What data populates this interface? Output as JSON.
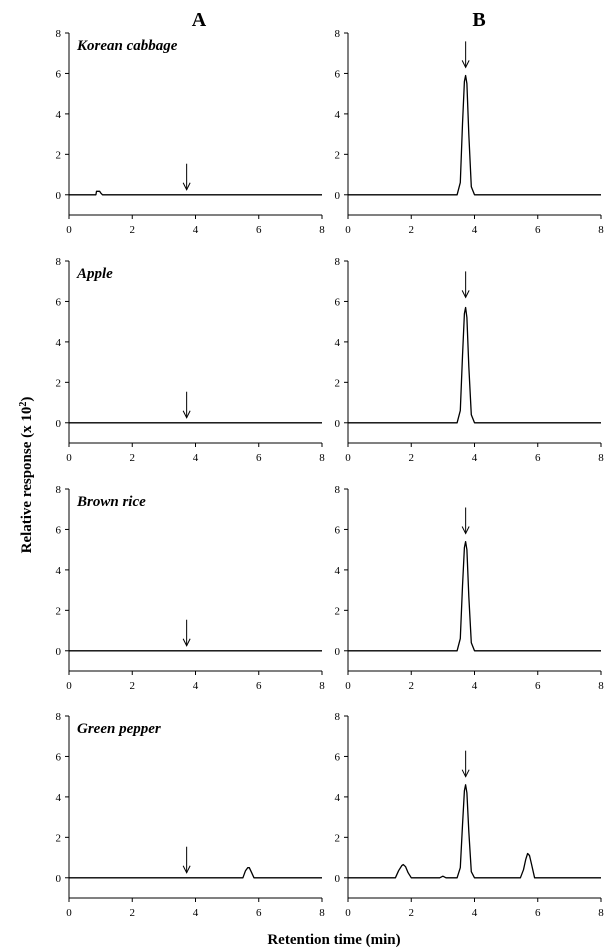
{
  "figure": {
    "column_labels": [
      "A",
      "B"
    ],
    "panel_labels": [
      "Korean cabbage",
      "Apple",
      "Brown rice",
      "Green pepper"
    ],
    "ylabel": "Relative response (x 10",
    "ylabel_sup": "2",
    "ylabel_end": ")",
    "xlabel": "Retention time (min)"
  },
  "chart_data": [
    {
      "type": "line",
      "column": "A",
      "row": "Korean cabbage",
      "title": "Korean cabbage",
      "xlim": [
        0,
        8
      ],
      "ylim": [
        -1,
        8
      ],
      "xticks": [
        0,
        2,
        4,
        6,
        8
      ],
      "yticks": [
        0,
        2,
        4,
        6,
        8
      ],
      "arrow": {
        "x": 3.72,
        "y": 0.25
      },
      "series": [
        {
          "x": [
            0,
            0.85,
            0.87,
            0.97,
            1.0,
            1.06,
            3.0,
            8
          ],
          "y": [
            0,
            0,
            0.17,
            0.17,
            0.1,
            0,
            0,
            0
          ]
        }
      ]
    },
    {
      "type": "line",
      "column": "B",
      "row": "Korean cabbage",
      "xlim": [
        0,
        8
      ],
      "ylim": [
        -1,
        8
      ],
      "xticks": [
        0,
        2,
        4,
        6,
        8
      ],
      "yticks": [
        0,
        2,
        4,
        6,
        8
      ],
      "arrow": {
        "x": 3.72,
        "y": 6.3
      },
      "series": [
        {
          "x": [
            0,
            3.45,
            3.55,
            3.62,
            3.68,
            3.72,
            3.76,
            3.82,
            3.9,
            4.0,
            8
          ],
          "y": [
            0,
            0,
            0.6,
            3.5,
            5.6,
            5.9,
            5.5,
            3.0,
            0.4,
            0,
            0
          ]
        }
      ]
    },
    {
      "type": "line",
      "column": "A",
      "row": "Apple",
      "title": "Apple",
      "xlim": [
        0,
        8
      ],
      "ylim": [
        -1,
        8
      ],
      "xticks": [
        0,
        2,
        4,
        6,
        8
      ],
      "yticks": [
        0,
        2,
        4,
        6,
        8
      ],
      "arrow": {
        "x": 3.72,
        "y": 0.25
      },
      "series": [
        {
          "x": [
            0,
            8
          ],
          "y": [
            0,
            0
          ]
        }
      ]
    },
    {
      "type": "line",
      "column": "B",
      "row": "Apple",
      "xlim": [
        0,
        8
      ],
      "ylim": [
        -1,
        8
      ],
      "xticks": [
        0,
        2,
        4,
        6,
        8
      ],
      "yticks": [
        0,
        2,
        4,
        6,
        8
      ],
      "arrow": {
        "x": 3.72,
        "y": 6.2
      },
      "series": [
        {
          "x": [
            0,
            3.45,
            3.55,
            3.62,
            3.68,
            3.72,
            3.76,
            3.82,
            3.9,
            4.0,
            8
          ],
          "y": [
            0,
            0,
            0.6,
            3.3,
            5.4,
            5.7,
            5.2,
            2.8,
            0.4,
            0,
            0
          ]
        }
      ]
    },
    {
      "type": "line",
      "column": "A",
      "row": "Brown rice",
      "title": "Brown rice",
      "xlim": [
        0,
        8
      ],
      "ylim": [
        -1,
        8
      ],
      "xticks": [
        0,
        2,
        4,
        6,
        8
      ],
      "yticks": [
        0,
        2,
        4,
        6,
        8
      ],
      "arrow": {
        "x": 3.72,
        "y": 0.25
      },
      "series": [
        {
          "x": [
            0,
            8
          ],
          "y": [
            0,
            0
          ]
        }
      ]
    },
    {
      "type": "line",
      "column": "B",
      "row": "Brown rice",
      "xlim": [
        0,
        8
      ],
      "ylim": [
        -1,
        8
      ],
      "xticks": [
        0,
        2,
        4,
        6,
        8
      ],
      "yticks": [
        0,
        2,
        4,
        6,
        8
      ],
      "arrow": {
        "x": 3.72,
        "y": 5.8
      },
      "series": [
        {
          "x": [
            0,
            3.45,
            3.55,
            3.62,
            3.68,
            3.72,
            3.76,
            3.82,
            3.9,
            4.0,
            8
          ],
          "y": [
            0,
            0,
            0.6,
            3.2,
            5.1,
            5.4,
            5.0,
            2.7,
            0.4,
            0,
            0
          ]
        }
      ]
    },
    {
      "type": "line",
      "column": "A",
      "row": "Green pepper",
      "title": "Green pepper",
      "xlim": [
        0,
        8
      ],
      "ylim": [
        -1,
        8
      ],
      "xticks": [
        0,
        2,
        4,
        6,
        8
      ],
      "yticks": [
        0,
        2,
        4,
        6,
        8
      ],
      "arrow": {
        "x": 3.72,
        "y": 0.25
      },
      "series": [
        {
          "x": [
            0,
            5.5,
            5.58,
            5.65,
            5.7,
            5.76,
            5.85,
            8
          ],
          "y": [
            0,
            0,
            0.35,
            0.5,
            0.5,
            0.3,
            0,
            0
          ]
        }
      ]
    },
    {
      "type": "line",
      "column": "B",
      "row": "Green pepper",
      "xlim": [
        0,
        8
      ],
      "ylim": [
        -1,
        8
      ],
      "xticks": [
        0,
        2,
        4,
        6,
        8
      ],
      "yticks": [
        0,
        2,
        4,
        6,
        8
      ],
      "arrow": {
        "x": 3.72,
        "y": 5.0
      },
      "series": [
        {
          "x": [
            0,
            1.5,
            1.6,
            1.7,
            1.75,
            1.82,
            1.9,
            2.0,
            2.9,
            3.0,
            3.1,
            3.45,
            3.55,
            3.62,
            3.68,
            3.72,
            3.76,
            3.82,
            3.9,
            4.0,
            5.45,
            5.55,
            5.62,
            5.68,
            5.74,
            5.8,
            5.9,
            8
          ],
          "y": [
            0,
            0,
            0.35,
            0.6,
            0.65,
            0.55,
            0.25,
            0,
            0,
            0.08,
            0,
            0,
            0.5,
            2.6,
            4.3,
            4.6,
            4.2,
            2.3,
            0.3,
            0,
            0,
            0.4,
            0.9,
            1.2,
            1.1,
            0.7,
            0,
            0
          ]
        }
      ]
    }
  ]
}
